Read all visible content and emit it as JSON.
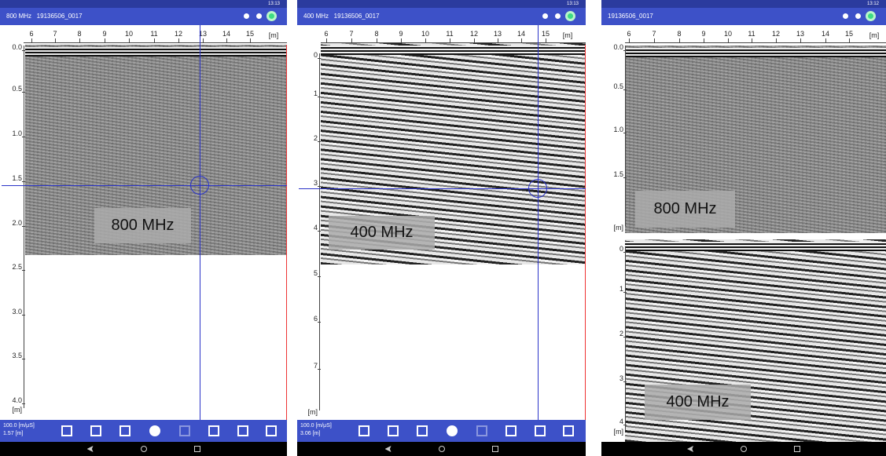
{
  "panels": [
    {
      "status_time": "13:13",
      "header_title": "800 MHz   19136506_0017",
      "x_ticks": [
        "6",
        "7",
        "8",
        "9",
        "10",
        "11",
        "12",
        "13",
        "14",
        "15"
      ],
      "x_unit": "[m]",
      "depth_axes": [
        {
          "labels": [
            "0.0",
            "0.5",
            "1.0",
            "1.5",
            "2.0",
            "2.5",
            "3.0",
            "3.5",
            "4.0"
          ],
          "unit": "[m]"
        }
      ],
      "overlay_labels": [
        "800 MHz"
      ],
      "info": [
        "100.0 [m/μS]",
        "1.57 [m]"
      ]
    },
    {
      "status_time": "13:13",
      "header_title": "400 MHz   19136506_0017",
      "x_ticks": [
        "6",
        "7",
        "8",
        "9",
        "10",
        "11",
        "12",
        "13",
        "14",
        "15"
      ],
      "x_unit": "[m]",
      "depth_axes": [
        {
          "labels": [
            "0",
            "1",
            "2",
            "3",
            "4",
            "5",
            "6",
            "7"
          ],
          "unit": "[m]"
        }
      ],
      "overlay_labels": [
        "400 MHz"
      ],
      "info": [
        "100.0 [m/μS]",
        "3.06 [m]"
      ]
    },
    {
      "status_time": "13:12",
      "header_title": "19136506_0017",
      "x_ticks": [
        "6",
        "7",
        "8",
        "9",
        "10",
        "11",
        "12",
        "13",
        "14",
        "15"
      ],
      "x_unit": "[m]",
      "depth_axes": [
        {
          "labels": [
            "0.0",
            "0.5",
            "1.0",
            "1.5"
          ],
          "unit": "[m]"
        },
        {
          "labels": [
            "0",
            "1",
            "2",
            "3",
            "4"
          ],
          "unit": "[m]"
        }
      ],
      "overlay_labels": [
        "800 MHz",
        "400 MHz"
      ],
      "info": []
    }
  ]
}
